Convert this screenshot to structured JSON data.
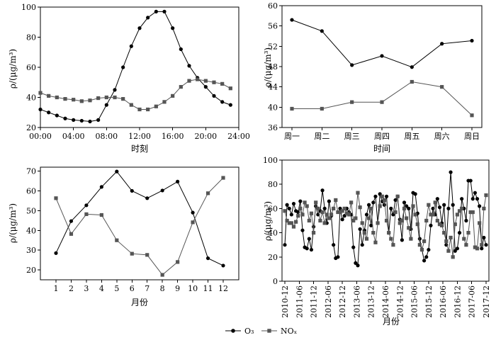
{
  "legend": {
    "o3_label": "O₃",
    "nox_label": "NOₓ"
  },
  "colors": {
    "o3": "#000000",
    "nox": "#555555"
  },
  "chart_data": [
    {
      "type": "line",
      "xlabel": "时刻",
      "ylabel": "ρ/(μg/m³)",
      "ylim": [
        20,
        100
      ],
      "yticks": [
        20,
        40,
        60,
        80,
        100
      ],
      "xlim": [
        0,
        24
      ],
      "xticks": [
        0,
        4,
        8,
        12,
        16,
        20,
        24
      ],
      "xticklabels": [
        "00:00",
        "04:00",
        "08:00",
        "12:00",
        "16:00",
        "20:00",
        "24:00"
      ],
      "series": [
        {
          "name": "O₃",
          "marker": "circle",
          "x": [
            0,
            1,
            2,
            3,
            4,
            5,
            6,
            7,
            8,
            9,
            10,
            11,
            12,
            13,
            14,
            15,
            16,
            17,
            18,
            19,
            20,
            21,
            22,
            23
          ],
          "y": [
            32,
            30,
            28,
            26,
            25,
            24.5,
            24,
            25,
            35,
            45,
            60,
            74,
            86,
            93,
            97,
            97,
            86,
            72,
            61,
            53,
            47,
            41,
            37,
            35
          ]
        },
        {
          "name": "NOₓ",
          "marker": "square",
          "x": [
            0,
            1,
            2,
            3,
            4,
            5,
            6,
            7,
            8,
            9,
            10,
            11,
            12,
            13,
            14,
            15,
            16,
            17,
            18,
            19,
            20,
            21,
            22,
            23
          ],
          "y": [
            43,
            41,
            40,
            39,
            38.5,
            37.5,
            38,
            39.5,
            40,
            40,
            39,
            35,
            32,
            32,
            34,
            37,
            41,
            47,
            51,
            52,
            51,
            50,
            49,
            46
          ]
        }
      ]
    },
    {
      "type": "line",
      "xlabel": "时间",
      "ylabel": "ρ/(μg/m³)",
      "ylim": [
        36,
        60
      ],
      "yticks": [
        36,
        40,
        44,
        48,
        52,
        56,
        60
      ],
      "categories": [
        "周一",
        "周二",
        "周三",
        "周四",
        "周五",
        "周六",
        "周日"
      ],
      "series": [
        {
          "name": "O₃",
          "marker": "circle",
          "values": [
            57.2,
            55,
            48.3,
            50.1,
            47.9,
            52.5,
            53.1
          ]
        },
        {
          "name": "NOₓ",
          "marker": "square",
          "values": [
            39.7,
            39.7,
            41,
            41,
            45,
            44,
            38.4
          ]
        }
      ]
    },
    {
      "type": "line",
      "xlabel": "月份",
      "ylabel": "ρ/(μg/m³)",
      "ylim": [
        15,
        72
      ],
      "yticks": [
        20,
        30,
        40,
        50,
        60,
        70
      ],
      "categories": [
        "1",
        "2",
        "3",
        "4",
        "5",
        "6",
        "7",
        "8",
        "9",
        "10",
        "11",
        "12"
      ],
      "series": [
        {
          "name": "O₃",
          "marker": "circle",
          "values": [
            28.5,
            44.7,
            52.7,
            62,
            69.8,
            60,
            56.3,
            60.2,
            64.7,
            49,
            25.9,
            22.2
          ]
        },
        {
          "name": "NOₓ",
          "marker": "square",
          "values": [
            56.3,
            38.2,
            48.2,
            47.8,
            35,
            28.2,
            27.6,
            17.5,
            24,
            44.1,
            58.8,
            66.6
          ]
        }
      ]
    },
    {
      "type": "line",
      "xlabel": "月份",
      "ylabel": "ρ/(μg/m³)",
      "ylim": [
        0,
        100
      ],
      "yticks": [
        0,
        20,
        40,
        60,
        80,
        100
      ],
      "xticklabels": [
        "2010-12",
        "2011-06",
        "2011-12",
        "2012-06",
        "2012-12",
        "2013-06",
        "2013-12",
        "2014-06",
        "2014-12",
        "2015-06",
        "2015-12",
        "2016-06",
        "2016-12",
        "2017-06",
        "2017-12"
      ],
      "series": [
        {
          "name": "O₃",
          "marker": "circle",
          "values": [
            30,
            63,
            60,
            55,
            64,
            58,
            57,
            66,
            42,
            28,
            27,
            35,
            26,
            45,
            62,
            55,
            58,
            75,
            60,
            48,
            66,
            54,
            30,
            19,
            20,
            60,
            51,
            54,
            60,
            57,
            55,
            28,
            15,
            13,
            43,
            30,
            42,
            55,
            63,
            46,
            65,
            70,
            48,
            72,
            66,
            63,
            70,
            40,
            60,
            55,
            67,
            70,
            51,
            34,
            65,
            62,
            60,
            43,
            73,
            72,
            56,
            35,
            26,
            17,
            20,
            26,
            46,
            60,
            55,
            68,
            61,
            48,
            63,
            30,
            60,
            90,
            63,
            25,
            27,
            40,
            68,
            60,
            50,
            83,
            83,
            68,
            73,
            68,
            62,
            27,
            36,
            30
          ]
        },
        {
          "name": "NOₓ",
          "marker": "square",
          "values": [
            58,
            50,
            48,
            48,
            45,
            49,
            54,
            60,
            55,
            65,
            62,
            50,
            56,
            40,
            65,
            60,
            50,
            57,
            48,
            55,
            52,
            55,
            60,
            67,
            57,
            57,
            58,
            60,
            56,
            55,
            65,
            50,
            52,
            73,
            61,
            48,
            40,
            35,
            52,
            60,
            40,
            32,
            48,
            62,
            70,
            67,
            50,
            40,
            35,
            30,
            57,
            70,
            48,
            50,
            60,
            52,
            44,
            35,
            62,
            55,
            47,
            30,
            26,
            33,
            50,
            63,
            55,
            55,
            65,
            50,
            47,
            46,
            40,
            33,
            25,
            36,
            20,
            47,
            55,
            58,
            60,
            35,
            30,
            40,
            57,
            57,
            28,
            27,
            48,
            30,
            60,
            71
          ]
        }
      ]
    }
  ]
}
